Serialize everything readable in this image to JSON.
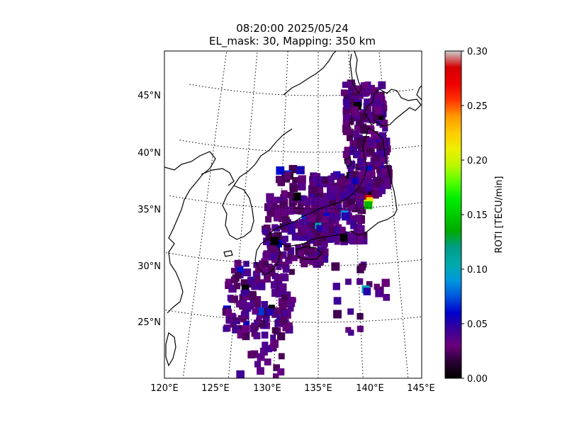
{
  "title": {
    "line1": "08:20:00 2025/05/24",
    "line2": "EL_mask: 30, Mapping: 350 km"
  },
  "map": {
    "projection": "conic (curved parallels)",
    "lon_range": [
      120,
      145
    ],
    "lat_range": [
      20,
      49
    ],
    "lon_ticks": [
      "120°E",
      "125°E",
      "130°E",
      "135°E",
      "140°E",
      "145°E"
    ],
    "lat_ticks": [
      "25°N",
      "30°N",
      "35°N",
      "40°N",
      "45°N"
    ],
    "lon_values": [
      120,
      125,
      130,
      135,
      140,
      145
    ],
    "lat_values": [
      25,
      30,
      35,
      40,
      45
    ],
    "graticule": "dotted",
    "coastline_color": "#000000"
  },
  "colorbar": {
    "label": "ROTI [TECU/min]",
    "ticks": [
      "0.00",
      "0.05",
      "0.10",
      "0.15",
      "0.20",
      "0.25",
      "0.30"
    ],
    "range": [
      0,
      0.3
    ],
    "colormap": "nipy_spectral"
  },
  "chart_data": {
    "type": "heatmap",
    "title": "08:20:00 2025/05/24 / EL_mask: 30, Mapping: 350 km",
    "value_label": "ROTI [TECU/min]",
    "value_range": [
      0,
      0.3
    ],
    "note_regions": [
      {
        "lon_range": [
          123,
          145
        ],
        "lat_range": [
          21,
          46
        ],
        "typical_value": 0.03
      },
      {
        "lon": 141.8,
        "lat": 35.8,
        "value": 0.28
      },
      {
        "lon": 141.6,
        "lat": 35.4,
        "value": 0.2
      },
      {
        "lon": 140.8,
        "lat": 27.8,
        "value": 0.1
      },
      {
        "lon": 135.0,
        "lat": 33.5,
        "value": 0.1
      },
      {
        "lon": 138.5,
        "lat": 34.5,
        "value": 0.09
      }
    ]
  }
}
